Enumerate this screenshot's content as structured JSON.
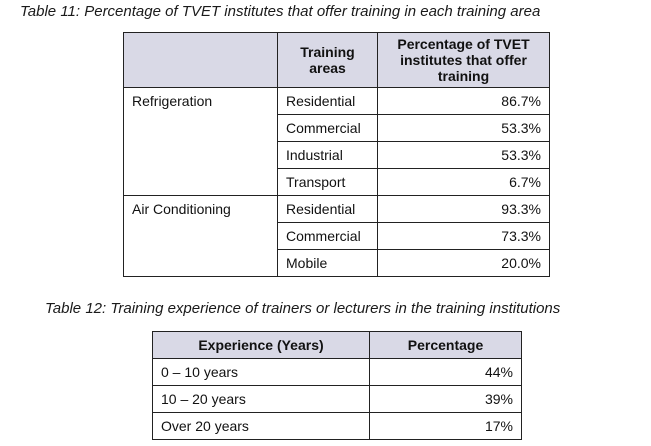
{
  "table11": {
    "caption": "Table 11: Percentage of TVET institutes that offer training in each training area",
    "headers": {
      "col1": "",
      "col2": "Training areas",
      "col3": "Percentage of TVET institutes that offer training"
    },
    "groups": [
      {
        "name": "Refrigeration",
        "rows": [
          {
            "area": "Residential",
            "percentage": "86.7%"
          },
          {
            "area": "Commercial",
            "percentage": "53.3%"
          },
          {
            "area": "Industrial",
            "percentage": "53.3%"
          },
          {
            "area": "Transport",
            "percentage": "6.7%"
          }
        ]
      },
      {
        "name": "Air Conditioning",
        "rows": [
          {
            "area": "Residential",
            "percentage": "93.3%"
          },
          {
            "area": "Commercial",
            "percentage": "73.3%"
          },
          {
            "area": "Mobile",
            "percentage": "20.0%"
          }
        ]
      }
    ]
  },
  "table12": {
    "caption": "Table 12: Training experience of trainers or lecturers in the training institutions",
    "headers": {
      "col1": "Experience (Years)",
      "col2": "Percentage"
    },
    "rows": [
      {
        "experience": "0 – 10 years",
        "percentage": "44%"
      },
      {
        "experience": "10 – 20 years",
        "percentage": "39%"
      },
      {
        "experience": "Over 20 years",
        "percentage": "17%"
      }
    ]
  }
}
